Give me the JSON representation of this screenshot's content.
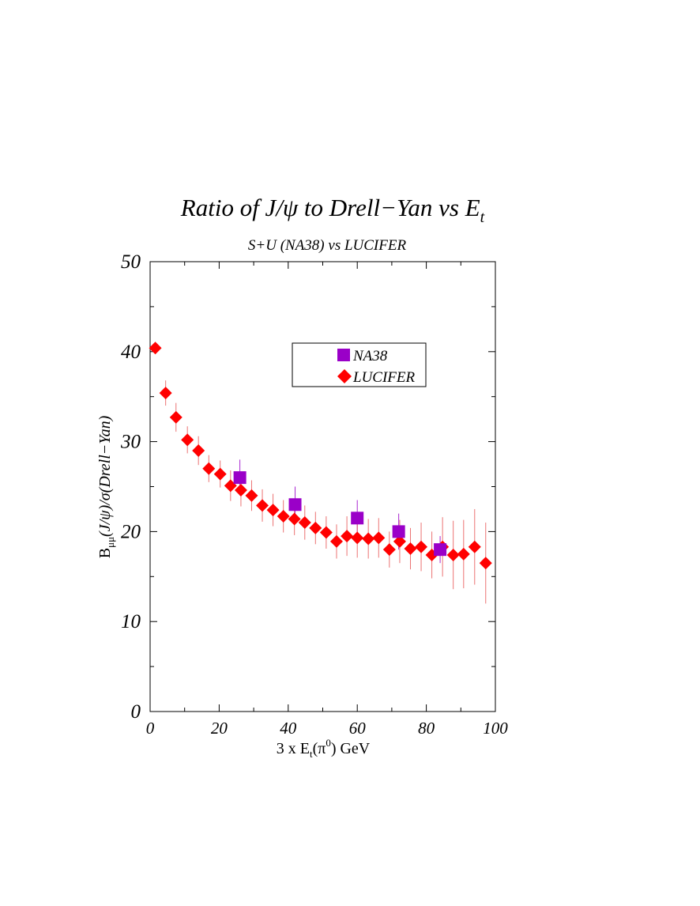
{
  "colors": {
    "na38": "#9a00c8",
    "lucifer": "#ff0000",
    "errorbar": "#e85a5a",
    "axis": "#000000"
  },
  "chart_data": {
    "type": "scatter",
    "title": "Ratio of J/ψ to Drell−Yan vs E",
    "title_subscript": "t",
    "subtitle": "S+U (NA38) vs LUCIFER",
    "xlabel": {
      "pre": "3 x E",
      "sub": "t",
      "mid": "(π",
      "sup": "0",
      "post": ") GeV"
    },
    "ylabel": {
      "pre": "B",
      "sub": "μμ",
      "post": "(J/ψ)/σ(Drell−Yan)"
    },
    "xlim": [
      0,
      100
    ],
    "ylim": [
      0,
      50
    ],
    "x_ticks": [
      0,
      20,
      40,
      60,
      80,
      100
    ],
    "y_ticks": [
      0,
      10,
      20,
      30,
      40,
      50
    ],
    "x_tick_labels": [
      "0",
      "20",
      "40",
      "60",
      "80",
      "100"
    ],
    "y_tick_labels": [
      "0",
      "10",
      "20",
      "30",
      "40",
      "50"
    ],
    "grid": false,
    "legend_position": "top-right",
    "series": [
      {
        "name": "NA38",
        "marker": "square",
        "x": [
          26,
          42,
          60,
          72,
          84
        ],
        "y": [
          26.0,
          23.0,
          21.5,
          20.0,
          18.0
        ],
        "err": [
          2.0,
          2.0,
          2.0,
          2.0,
          1.5
        ]
      },
      {
        "name": "LUCIFER",
        "marker": "diamond",
        "x": [
          1.5,
          4.5,
          7.5,
          10.8,
          14,
          17,
          20.3,
          23.3,
          26.3,
          29.4,
          32.5,
          35.6,
          38.6,
          41.8,
          44.8,
          47.9,
          51,
          54,
          57,
          60,
          63.2,
          66.2,
          69.3,
          72.3,
          75.4,
          78.5,
          81.6,
          84.7,
          87.8,
          90.8,
          94,
          97.2
        ],
        "y": [
          40.4,
          35.4,
          32.7,
          30.2,
          29.0,
          27.0,
          26.4,
          25.1,
          24.6,
          24.0,
          22.9,
          22.4,
          21.7,
          21.4,
          21.0,
          20.4,
          19.9,
          18.9,
          19.5,
          19.3,
          19.2,
          19.3,
          18.0,
          18.9,
          18.1,
          18.3,
          17.4,
          18.3,
          17.4,
          17.5,
          18.3,
          16.5
        ],
        "err": [
          0.5,
          1.4,
          1.6,
          1.5,
          1.6,
          1.5,
          1.5,
          1.7,
          1.8,
          1.7,
          1.8,
          1.8,
          1.8,
          1.8,
          1.9,
          1.8,
          1.8,
          1.9,
          2.2,
          2.2,
          2.2,
          2.2,
          2.0,
          2.4,
          2.3,
          2.7,
          2.6,
          3.3,
          3.8,
          3.8,
          4.2,
          4.5
        ]
      }
    ]
  }
}
